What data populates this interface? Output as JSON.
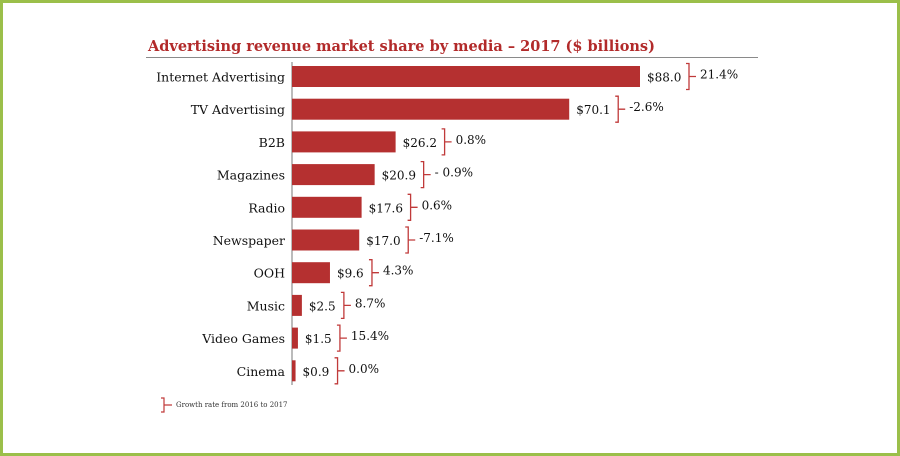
{
  "colors": {
    "bar": "#b53030",
    "title": "#b22a2a",
    "bracket": "#c03a3a",
    "frame": "#9bbf4a"
  },
  "chart_data": {
    "type": "bar",
    "orientation": "horizontal",
    "title": "Advertising revenue market share by media – 2017 ($ billions)",
    "categories": [
      "Internet Advertising",
      "TV Advertising",
      "B2B",
      "Magazines",
      "Radio",
      "Newspaper",
      "OOH",
      "Music",
      "Video Games",
      "Cinema"
    ],
    "values": [
      88.0,
      70.1,
      26.2,
      20.9,
      17.6,
      17.0,
      9.6,
      2.5,
      1.5,
      0.9
    ],
    "value_labels": [
      "$88.0",
      "$70.1",
      "$26.2",
      "$20.9",
      "$17.6",
      "$17.0",
      "$9.6",
      "$2.5",
      "$1.5",
      "$0.9"
    ],
    "growth_labels": [
      "21.4%",
      "-2.6%",
      "0.8%",
      "- 0.9%",
      "0.6%",
      "-7.1%",
      "4.3%",
      "8.7%",
      "15.4%",
      "0.0%"
    ],
    "growth_legend": "Growth rate from 2016 to 2017",
    "xlim": [
      0,
      88.0
    ],
    "grid": false
  }
}
